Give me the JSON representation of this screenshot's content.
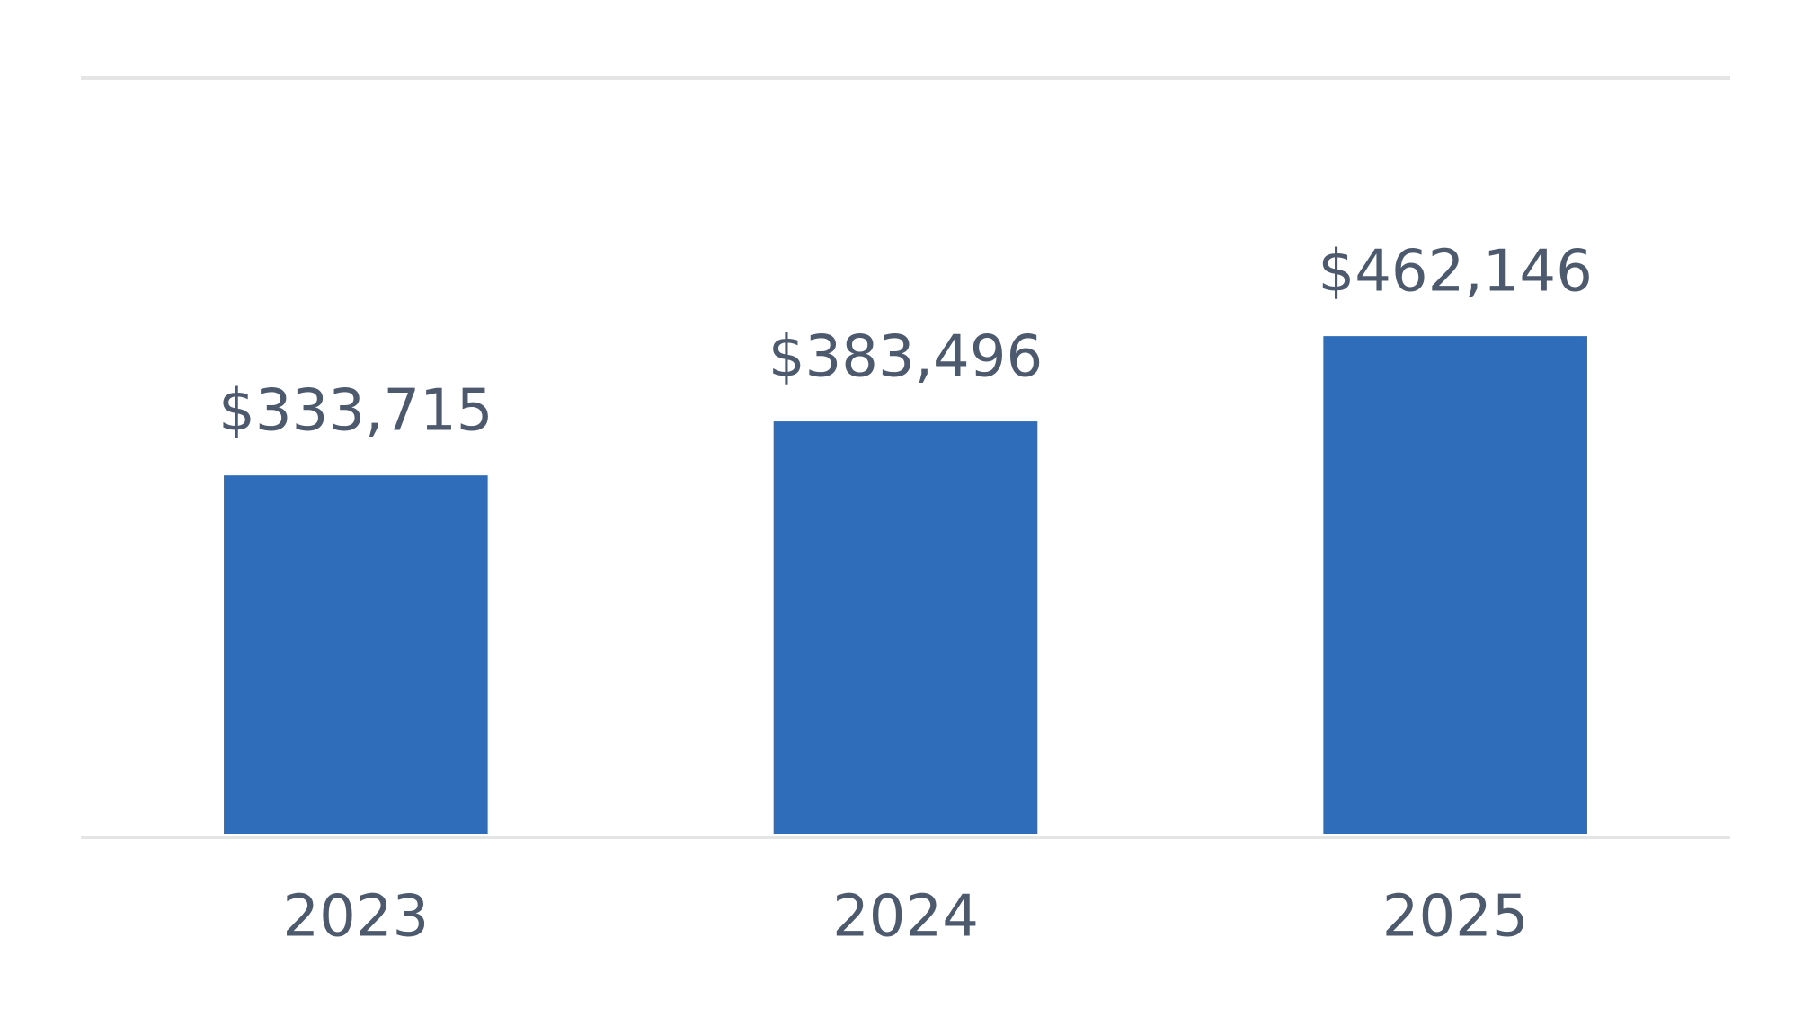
{
  "chart_data": {
    "type": "bar",
    "categories": [
      "2023",
      "2024",
      "2025"
    ],
    "values": [
      333715,
      383496,
      462146
    ],
    "value_labels": [
      "$333,715",
      "$383,496",
      "$462,146"
    ],
    "color": "#2f6dba",
    "ylim": [
      0,
      700000
    ]
  }
}
